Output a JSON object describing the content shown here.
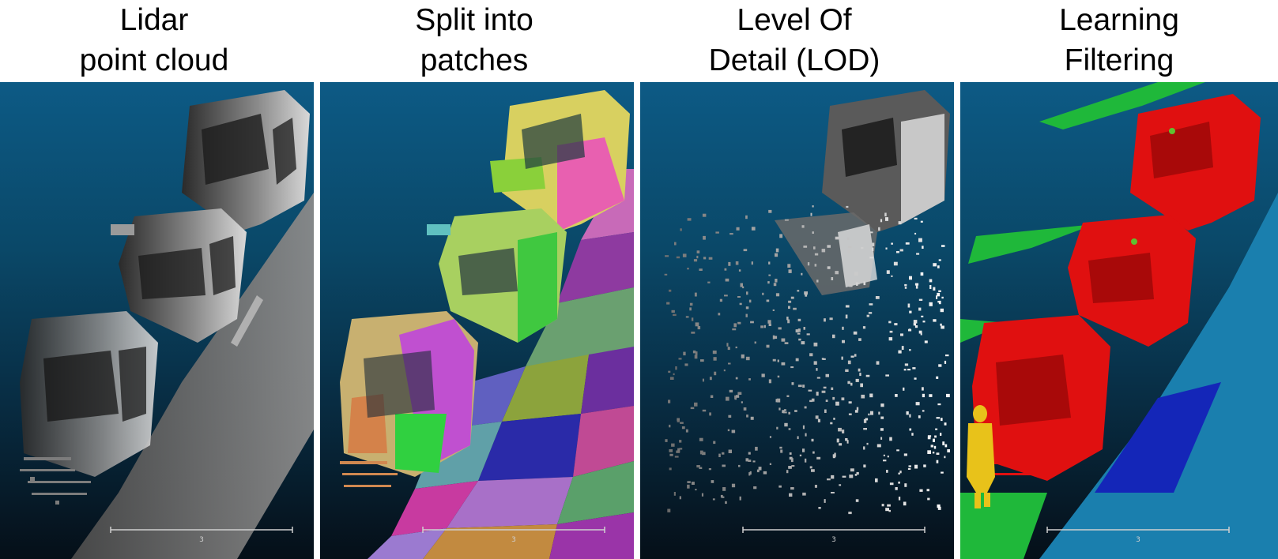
{
  "panels": [
    {
      "title_line1": "Lidar",
      "title_line2": "point cloud",
      "scale_label": "3"
    },
    {
      "title_line1": "Split into",
      "title_line2": "patches",
      "scale_label": "3"
    },
    {
      "title_line1": "Level Of",
      "title_line2": "Detail (LOD)",
      "scale_label": "3"
    },
    {
      "title_line1": "Learning",
      "title_line2": "Filtering",
      "scale_label": "3"
    }
  ],
  "colors": {
    "background_top": "#0d5a85",
    "background_bottom": "#050f18",
    "car_class": "#e01010",
    "vegetation_class": "#1fb83a",
    "ground_class": "#1a7fae",
    "road_class": "#1426b8",
    "pedestrian_class": "#e8c21a"
  }
}
